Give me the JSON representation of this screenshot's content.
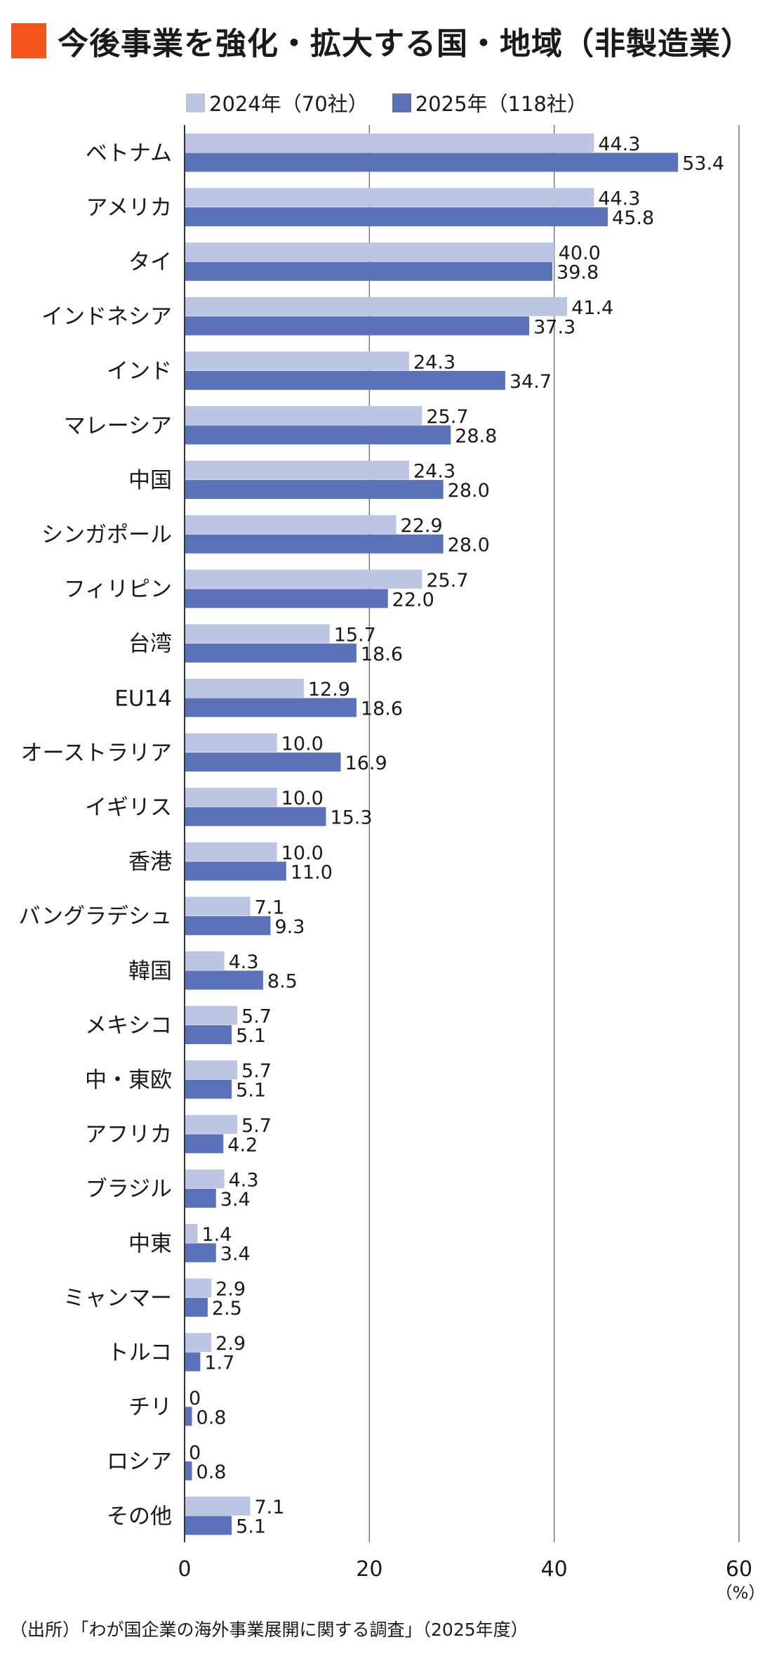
{
  "title": "今後事業を強化・拡大する国・地域（非製造業）",
  "colors": {
    "accent": "#F2561D",
    "series2024": "#BCC5E1",
    "series2025": "#5B72B9",
    "grid": "#777777",
    "axis": "#333333"
  },
  "source": "（出所）「わが国企業の海外事業展開に関する調査」（2025年度）",
  "chart_data": {
    "type": "bar",
    "orientation": "horizontal",
    "categories": [
      "ベトナム",
      "アメリカ",
      "タイ",
      "インドネシア",
      "インド",
      "マレーシア",
      "中国",
      "シンガポール",
      "フィリピン",
      "台湾",
      "EU14",
      "オーストラリア",
      "イギリス",
      "香港",
      "バングラデシュ",
      "韓国",
      "メキシコ",
      "中・東欧",
      "アフリカ",
      "ブラジル",
      "中東",
      "ミャンマー",
      "トルコ",
      "チリ",
      "ロシア",
      "その他"
    ],
    "series": [
      {
        "name": "2024年（70社）",
        "values": [
          44.3,
          44.3,
          40.0,
          41.4,
          24.3,
          25.7,
          24.3,
          22.9,
          25.7,
          15.7,
          12.9,
          10.0,
          10.0,
          10.0,
          7.1,
          4.3,
          5.7,
          5.7,
          5.7,
          4.3,
          1.4,
          2.9,
          2.9,
          0,
          0,
          7.1
        ]
      },
      {
        "name": "2025年（118社）",
        "values": [
          53.4,
          45.8,
          39.8,
          37.3,
          34.7,
          28.8,
          28.0,
          28.0,
          22.0,
          18.6,
          18.6,
          16.9,
          15.3,
          11.0,
          9.3,
          8.5,
          5.1,
          5.1,
          4.2,
          3.4,
          3.4,
          2.5,
          1.7,
          0.8,
          0.8,
          5.1
        ]
      }
    ],
    "value_labels": [
      [
        "44.3",
        "44.3",
        "40.0",
        "41.4",
        "24.3",
        "25.7",
        "24.3",
        "22.9",
        "25.7",
        "15.7",
        "12.9",
        "10.0",
        "10.0",
        "10.0",
        "7.1",
        "4.3",
        "5.7",
        "5.7",
        "5.7",
        "4.3",
        "1.4",
        "2.9",
        "2.9",
        "0",
        "0",
        "7.1"
      ],
      [
        "53.4",
        "45.8",
        "39.8",
        "37.3",
        "34.7",
        "28.8",
        "28.0",
        "28.0",
        "22.0",
        "18.6",
        "18.6",
        "16.9",
        "15.3",
        "11.0",
        "9.3",
        "8.5",
        "5.1",
        "5.1",
        "4.2",
        "3.4",
        "3.4",
        "2.5",
        "1.7",
        "0.8",
        "0.8",
        "5.1"
      ]
    ],
    "xlim": [
      0,
      60
    ],
    "xticks": [
      "0",
      "20",
      "40",
      "60"
    ],
    "xunit": "（%）",
    "grid": true,
    "legend_position": "top"
  }
}
